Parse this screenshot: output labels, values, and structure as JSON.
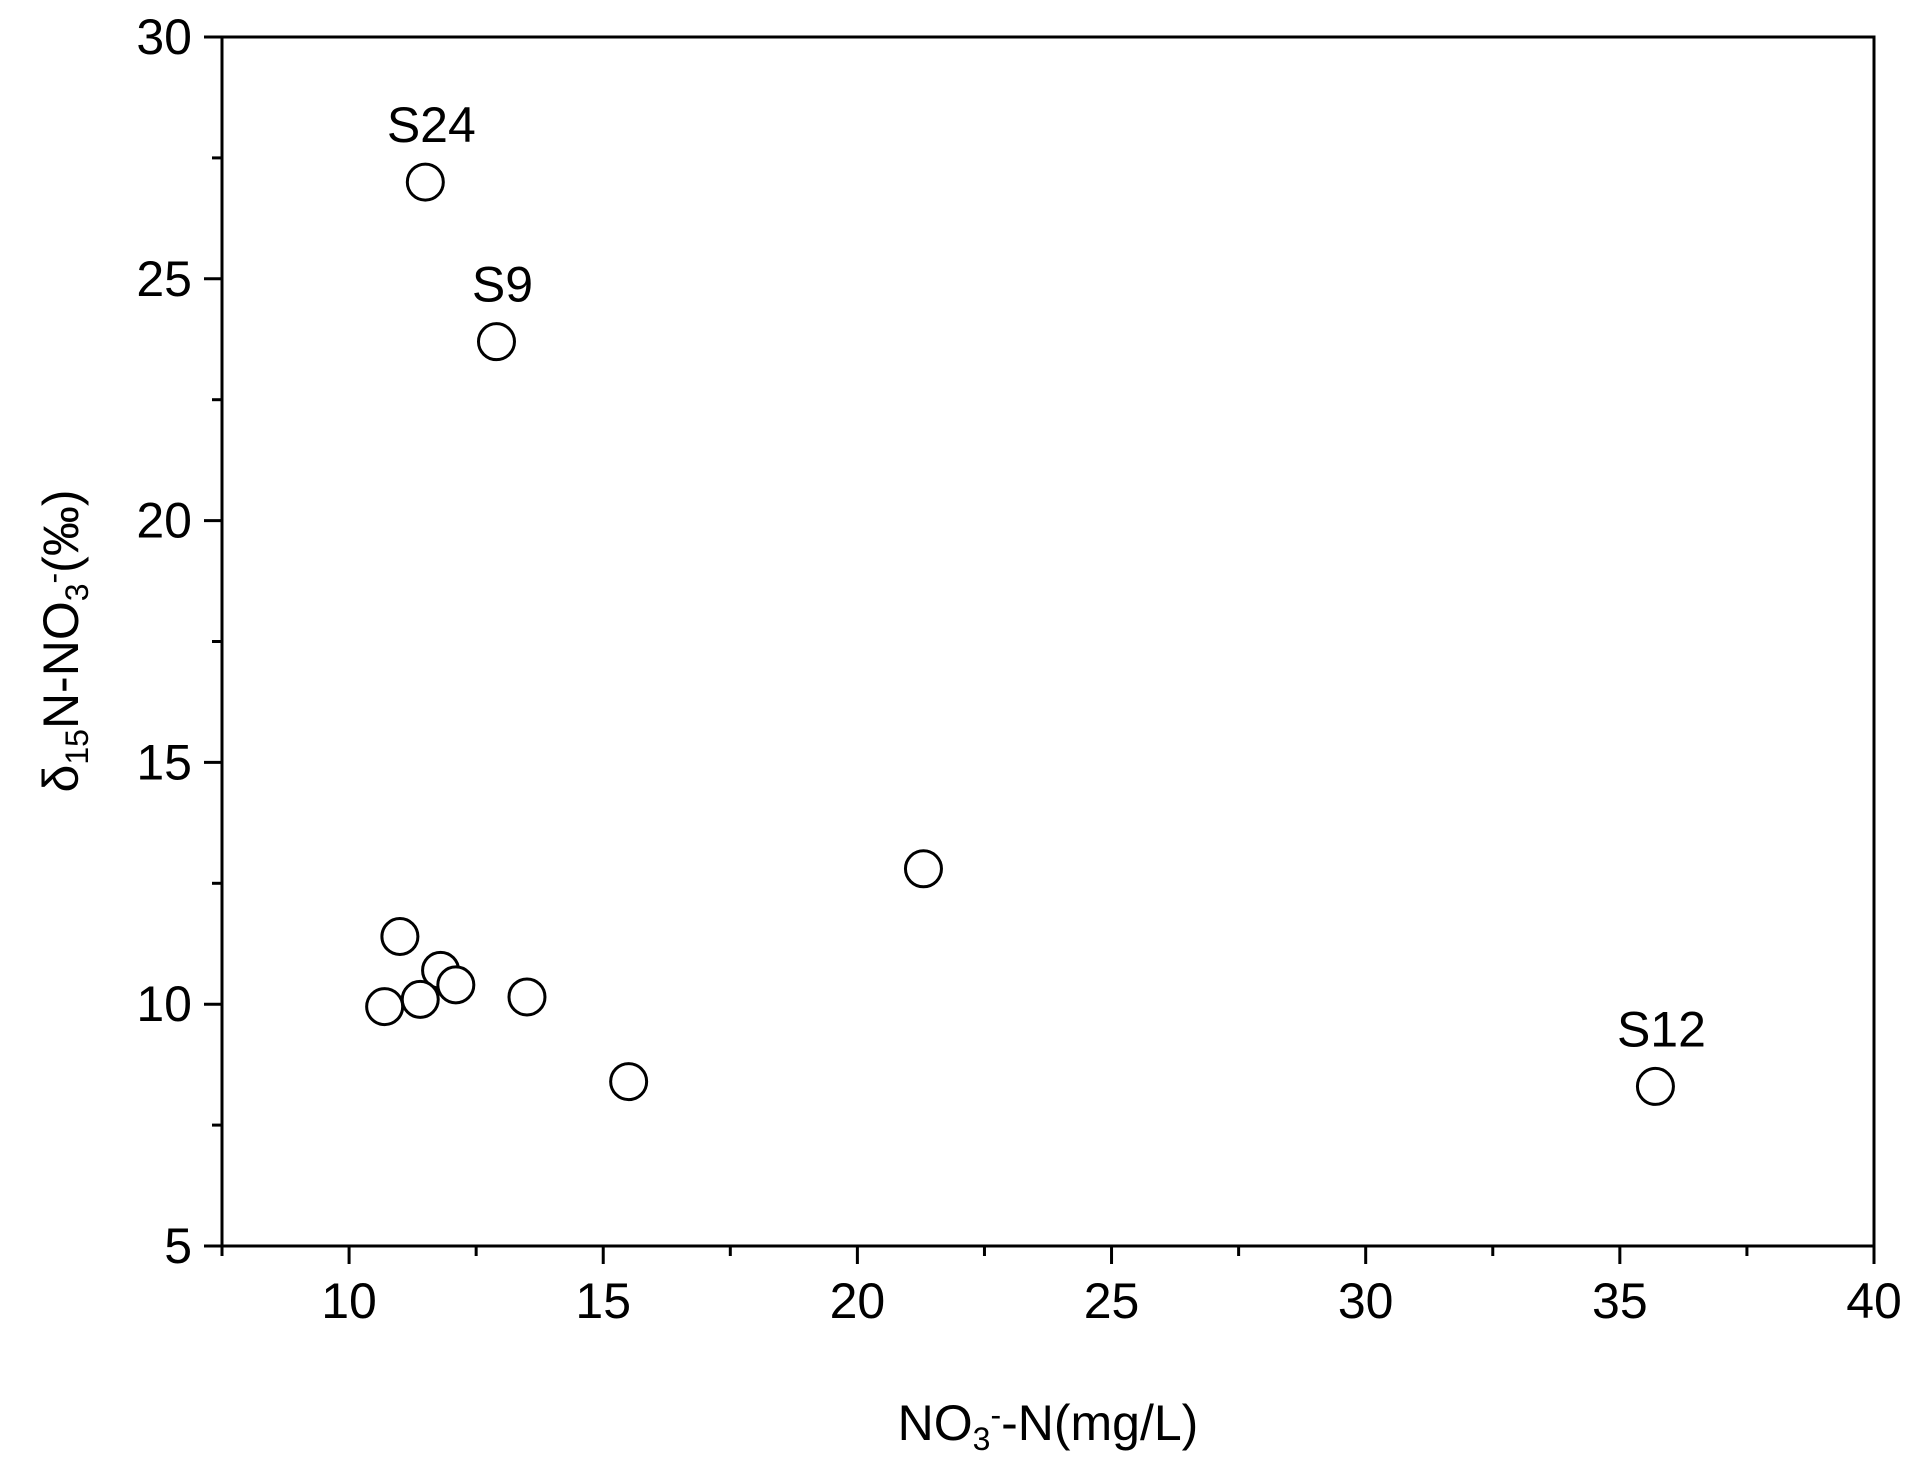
{
  "chart_data": {
    "type": "scatter",
    "title": "",
    "xlabel": {
      "parts": [
        {
          "text": "NO",
          "style": "normal"
        },
        {
          "text": "3",
          "style": "sub"
        },
        {
          "text": "-",
          "style": "sup"
        },
        {
          "text": "-N(mg/L)",
          "style": "normal"
        }
      ]
    },
    "ylabel": {
      "parts": [
        {
          "text": "δ",
          "style": "normal"
        },
        {
          "text": "15",
          "style": "sub"
        },
        {
          "text": "N-NO",
          "style": "normal"
        },
        {
          "text": "3",
          "style": "sub"
        },
        {
          "text": "-",
          "style": "sup"
        },
        {
          "text": "(‰)",
          "style": "normal"
        }
      ]
    },
    "xlim": [
      7.5,
      40
    ],
    "ylim": [
      5,
      30
    ],
    "x_ticks": [
      10,
      15,
      20,
      25,
      30,
      35,
      40
    ],
    "x_tick_labels": [
      "10",
      "15",
      "20",
      "25",
      "30",
      "35",
      "40"
    ],
    "y_ticks": [
      5,
      10,
      15,
      20,
      25,
      30
    ],
    "y_tick_labels": [
      "5",
      "10",
      "15",
      "20",
      "25",
      "30"
    ],
    "grid": false,
    "marker": "open-circle",
    "marker_color": "#000000",
    "points": [
      {
        "x": 11.5,
        "y": 27.0,
        "label": "S24"
      },
      {
        "x": 12.9,
        "y": 23.7,
        "label": "S9"
      },
      {
        "x": 21.3,
        "y": 12.8,
        "label": ""
      },
      {
        "x": 11.0,
        "y": 11.4,
        "label": ""
      },
      {
        "x": 11.8,
        "y": 10.7,
        "label": ""
      },
      {
        "x": 12.1,
        "y": 10.4,
        "label": ""
      },
      {
        "x": 11.4,
        "y": 10.1,
        "label": ""
      },
      {
        "x": 10.7,
        "y": 9.95,
        "label": ""
      },
      {
        "x": 13.5,
        "y": 10.15,
        "label": ""
      },
      {
        "x": 15.5,
        "y": 8.4,
        "label": ""
      },
      {
        "x": 35.7,
        "y": 8.3,
        "label": "S12"
      }
    ]
  }
}
